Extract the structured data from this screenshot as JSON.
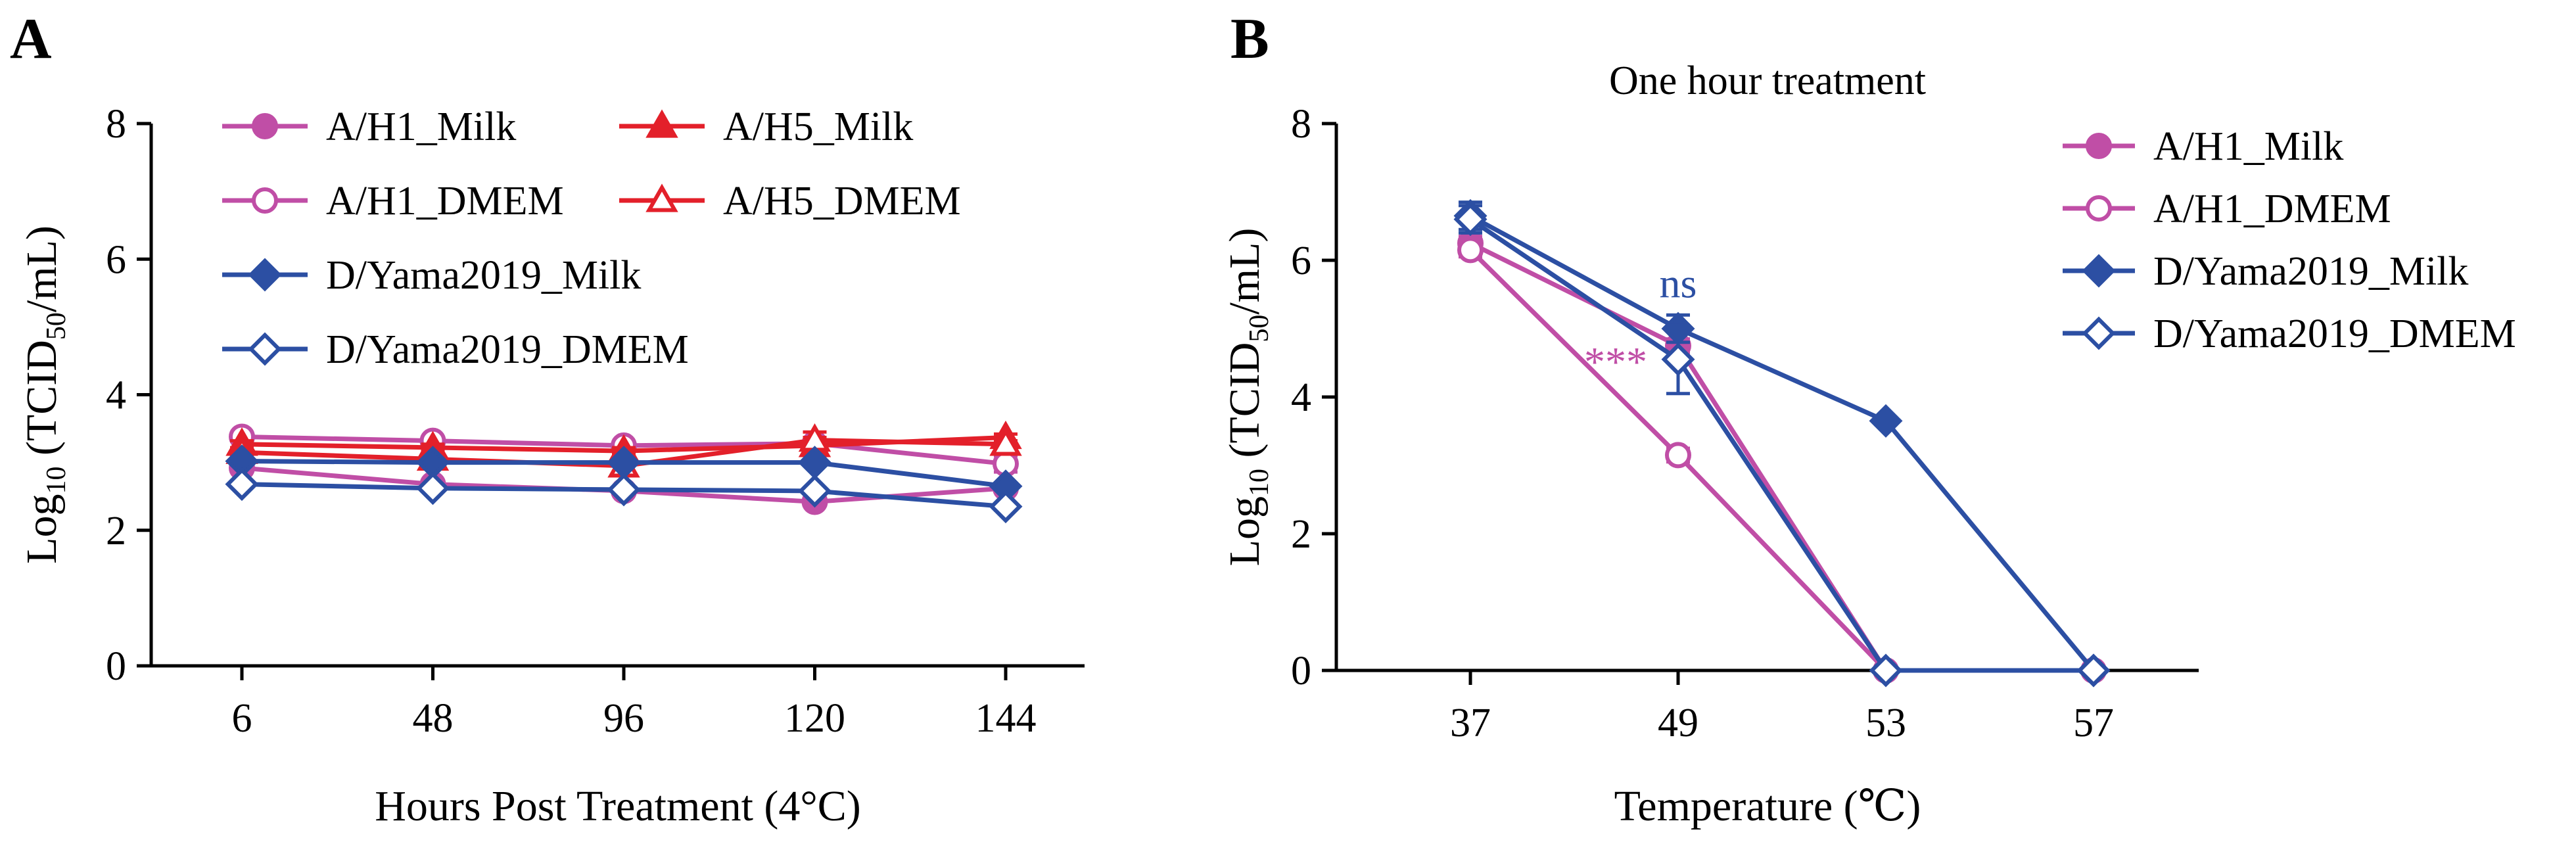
{
  "colors": {
    "h1": "#c04ea6",
    "h5": "#e3202a",
    "yama": "#2c4fa3",
    "axis": "#000000"
  },
  "chart_data": [
    {
      "panel_label": "A",
      "type": "line",
      "title": "",
      "xlabel": "Hours Post Treatment (4°C)",
      "ylabel": {
        "main": "Log",
        "sub": "10",
        "mid": " (TCID",
        "sub2": "50",
        "end": "/mL)"
      },
      "categories": [
        "6",
        "48",
        "96",
        "120",
        "144"
      ],
      "ylim": [
        0,
        8
      ],
      "yticks": [
        "0",
        "2",
        "4",
        "6",
        "8"
      ],
      "legend_position": "top",
      "series": [
        {
          "name": "A/H1_Milk",
          "color": "#c04ea6",
          "marker": "circle",
          "filled": true,
          "values": [
            2.92,
            2.68,
            2.58,
            2.42,
            2.62
          ],
          "errors": [
            0,
            0,
            0.05,
            0.05,
            0.05
          ]
        },
        {
          "name": "A/H1_DMEM",
          "color": "#c04ea6",
          "marker": "circle",
          "filled": false,
          "values": [
            3.38,
            3.32,
            3.25,
            3.28,
            2.98
          ],
          "errors": [
            0.05,
            0.05,
            0.05,
            0.05,
            0.12
          ]
        },
        {
          "name": "A/H5_Milk",
          "color": "#e3202a",
          "marker": "triangle",
          "filled": true,
          "values": [
            3.27,
            3.22,
            3.17,
            3.25,
            3.37
          ],
          "errors": [
            0.05,
            0.05,
            0.05,
            0.12,
            0.05
          ]
        },
        {
          "name": "A/H5_DMEM",
          "color": "#e3202a",
          "marker": "triangle",
          "filled": false,
          "values": [
            3.15,
            3.05,
            2.95,
            3.33,
            3.27
          ],
          "errors": [
            0.05,
            0.08,
            0.1,
            0.12,
            0.05
          ]
        },
        {
          "name": "D/Yama2019_Milk",
          "color": "#2c4fa3",
          "marker": "diamond",
          "filled": true,
          "values": [
            3.02,
            3.0,
            3.0,
            3.0,
            2.65
          ],
          "errors": [
            0.05,
            0,
            0,
            0,
            0.05
          ]
        },
        {
          "name": "D/Yama2019_DMEM",
          "color": "#2c4fa3",
          "marker": "diamond",
          "filled": false,
          "values": [
            2.68,
            2.62,
            2.6,
            2.58,
            2.35
          ],
          "errors": [
            0.05,
            0,
            0,
            0,
            0.05
          ]
        }
      ]
    },
    {
      "panel_label": "B",
      "type": "line",
      "title": "One hour treatment",
      "xlabel": "Temperature (℃)",
      "ylabel": {
        "main": "Log",
        "sub": "10",
        "mid": " (TCID",
        "sub2": "50",
        "end": "/mL)"
      },
      "categories": [
        "37",
        "49",
        "53",
        "57"
      ],
      "ylim": [
        0,
        8
      ],
      "yticks": [
        "0",
        "2",
        "4",
        "6",
        "8"
      ],
      "legend_position": "right",
      "annotations": [
        {
          "text": "ns",
          "color": "#2c4fa3",
          "category": "49",
          "y": 5.65
        },
        {
          "text": "***",
          "color": "#c04ea6",
          "category": "49",
          "y": 4.5
        }
      ],
      "series": [
        {
          "name": "A/H1_Milk",
          "color": "#c04ea6",
          "marker": "circle",
          "filled": true,
          "values": [
            6.25,
            4.75,
            0,
            0
          ],
          "errors": [
            0.1,
            0.1,
            0,
            0
          ]
        },
        {
          "name": "A/H1_DMEM",
          "color": "#c04ea6",
          "marker": "circle",
          "filled": false,
          "values": [
            6.15,
            3.15,
            0,
            0
          ],
          "errors": [
            0.1,
            0.1,
            0,
            0
          ]
        },
        {
          "name": "D/Yama2019_Milk",
          "color": "#2c4fa3",
          "marker": "diamond",
          "filled": true,
          "values": [
            6.65,
            5.0,
            3.65,
            0
          ],
          "errors": [
            0.2,
            0.2,
            0.05,
            0
          ]
        },
        {
          "name": "D/Yama2019_DMEM",
          "color": "#2c4fa3",
          "marker": "diamond",
          "filled": false,
          "values": [
            6.6,
            4.55,
            0,
            0
          ],
          "errors": [
            0.2,
            0.5,
            0,
            0
          ]
        }
      ]
    }
  ]
}
